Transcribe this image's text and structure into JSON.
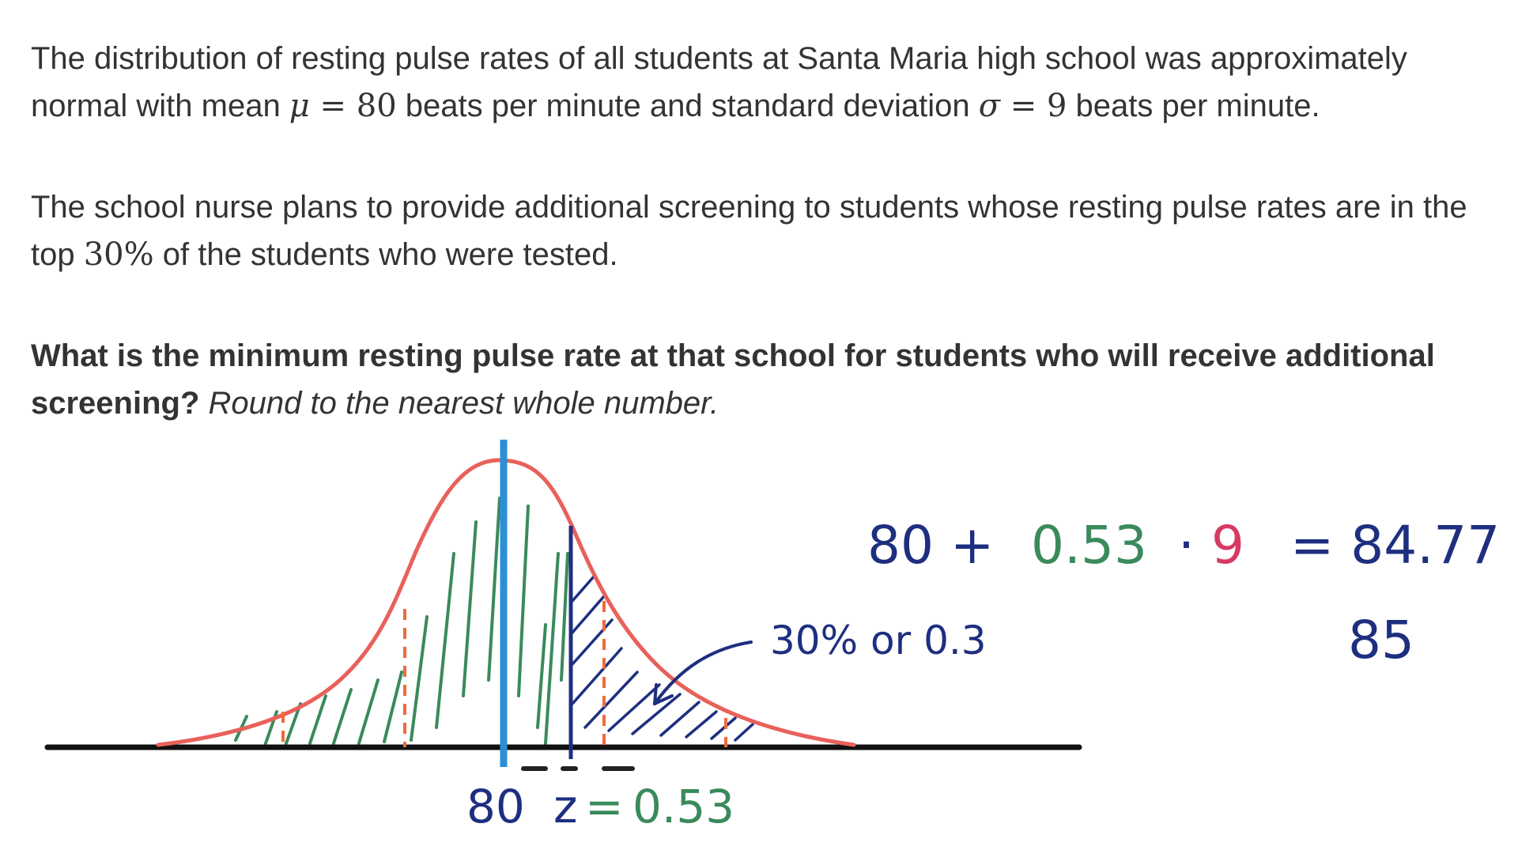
{
  "problem": {
    "p1": {
      "text_a": "The distribution of resting pulse rates of all students at Santa Maria high school was approximately normal with mean ",
      "mu_symbol": "μ",
      "mu_eq": " = ",
      "mu_value": "80",
      "text_b": " beats per minute and standard deviation ",
      "sigma_symbol": "σ",
      "sigma_eq": " = ",
      "sigma_value": "9",
      "text_c": " beats per minute."
    },
    "p2": {
      "text_a": "The school nurse plans to provide additional screening to students whose resting pulse rates are in the top ",
      "percent": "30%",
      "text_b": " of the students who were tested."
    },
    "p3": {
      "bold": "What is the minimum resting pulse rate at that school for students who will receive additional screening?",
      "italic": "Round to the nearest whole number."
    }
  },
  "annotations": {
    "calc_80_plus": "80 +",
    "calc_z": "0.53",
    "calc_dot": "·",
    "calc_sigma": "9",
    "calc_result": "= 84.77",
    "rounded": "85",
    "area_label": "30% or 0.3",
    "mean_label": "80",
    "z_label": "z",
    "z_eq": "=",
    "z_value": "0.53"
  },
  "colors": {
    "curve": "#e8615a",
    "mean_line": "#2b8fd6",
    "cutoff_line": "#1e2f80",
    "green_ink": "#3a8a5c",
    "blue_ink": "#1e2f80",
    "pink_ink": "#d63a62",
    "axis": "#111111",
    "sd_marks": "#f06a3c"
  }
}
